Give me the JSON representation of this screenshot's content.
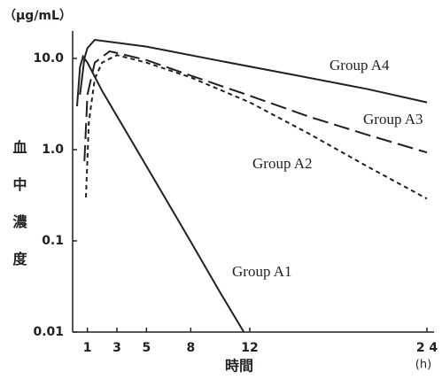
{
  "chart_data": {
    "type": "line",
    "y_unit": "（μg/mL）",
    "ylabel": "血中濃度",
    "xlabel": "時間",
    "x_unit": "(h)",
    "ylog": true,
    "xlim": [
      0,
      24
    ],
    "ylim": [
      0.01,
      20
    ],
    "xticks": [
      1,
      3,
      5,
      8,
      12,
      {
        "value": 24,
        "label": "2 4"
      }
    ],
    "yticks": [
      {
        "value": 10,
        "label": "10.0"
      },
      {
        "value": 1,
        "label": "1.0"
      },
      0.1,
      0.01
    ],
    "series": [
      {
        "name": "Group A1",
        "color": "#231f20",
        "line_style": "solid",
        "x": [
          0.3,
          0.5,
          0.7,
          1,
          2,
          4,
          6,
          8,
          10,
          11.6
        ],
        "values": [
          3,
          8,
          10.5,
          9,
          4.4,
          1.24,
          0.35,
          0.098,
          0.027,
          0.01
        ]
      },
      {
        "name": "Group A2",
        "color": "#231f20",
        "line_style": "dotted",
        "x": [
          0.9,
          1.1,
          1.5,
          2,
          3,
          5,
          8,
          12,
          16,
          20,
          24
        ],
        "values": [
          0.3,
          2,
          6,
          9,
          10.9,
          9,
          6.2,
          3.3,
          1.5,
          0.65,
          0.29
        ]
      },
      {
        "name": "Group A3",
        "color": "#231f20",
        "line_style": "dashed",
        "x": [
          0.8,
          1,
          1.5,
          2.5,
          5,
          8,
          12,
          16,
          20,
          24
        ],
        "values": [
          0.75,
          4,
          9,
          12,
          9.6,
          6.5,
          3.9,
          2.3,
          1.45,
          0.93
        ]
      },
      {
        "name": "Group A4",
        "color": "#231f20",
        "line_style": "solid",
        "x": [
          0.5,
          0.8,
          1,
          1.5,
          5,
          10,
          15,
          20,
          24
        ],
        "values": [
          4,
          10,
          13,
          16,
          13.5,
          9.4,
          6.6,
          4.6,
          3.3
        ]
      }
    ]
  }
}
